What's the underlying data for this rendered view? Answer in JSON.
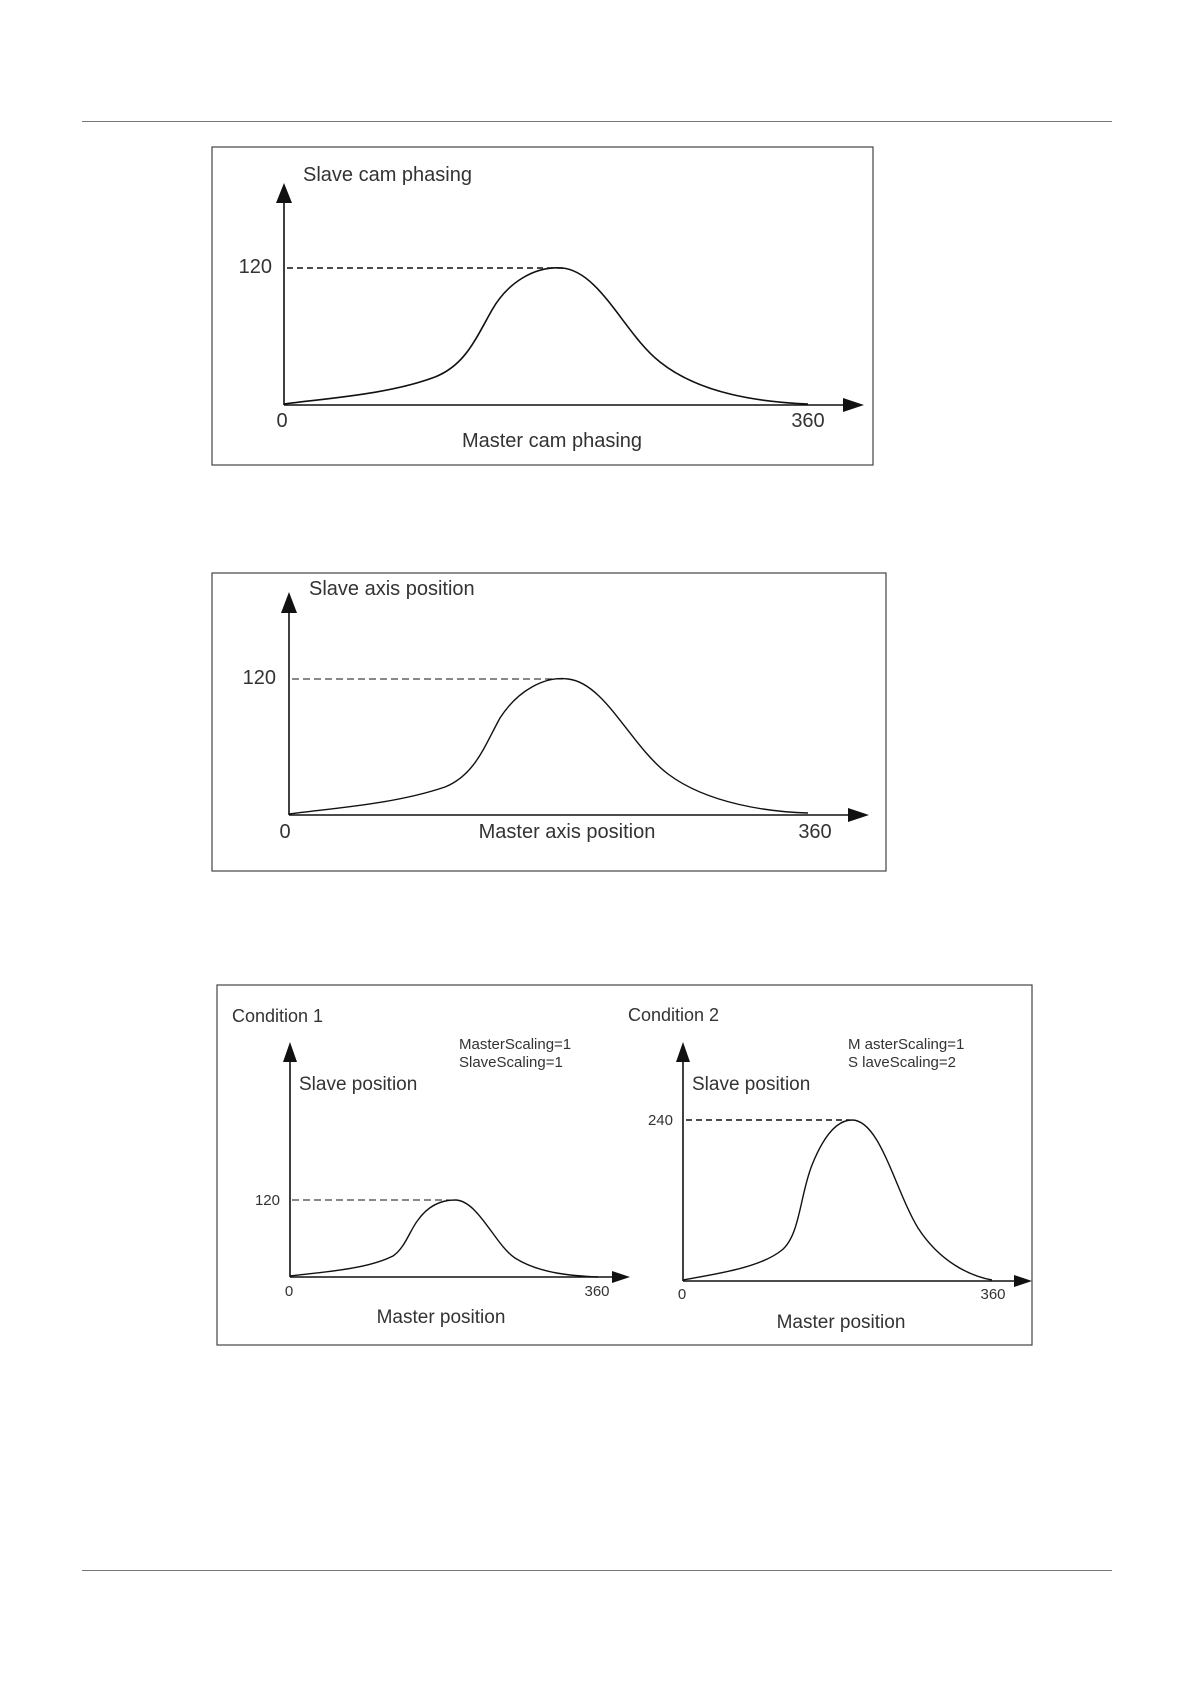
{
  "colors": {
    "ink": "#111111",
    "text": "#333333",
    "frame": "#444444",
    "rule": "#777777",
    "background": "#ffffff"
  },
  "figures": [
    {
      "id": "cam-phasing",
      "y_title": "Slave cam phasing",
      "x_title": "Master cam phasing",
      "x_min_label": "0",
      "x_max_label": "360",
      "peak_label": "120",
      "peak_value": 120
    },
    {
      "id": "axis-position",
      "y_title": "Slave axis position",
      "x_title": "Master axis position",
      "x_min_label": "0",
      "x_max_label": "360",
      "peak_label": "120",
      "peak_value": 120
    },
    {
      "id": "scaling-comparison",
      "panels": [
        {
          "condition": "Condition 1",
          "master_scaling": "MasterScaling=1",
          "slave_scaling": "SlaveScaling=1",
          "y_title": "Slave position",
          "x_title": "Master position",
          "x_min_label": "0",
          "x_max_label": "360",
          "peak_label": "120",
          "peak_value": 120
        },
        {
          "condition": "Condition 2",
          "master_scaling": "M asterScaling=1",
          "slave_scaling": "S laveScaling=2",
          "y_title": "Slave position",
          "x_title": "Master position",
          "x_min_label": "0",
          "x_max_label": "360",
          "peak_label": "240",
          "peak_value": 240
        }
      ]
    }
  ]
}
